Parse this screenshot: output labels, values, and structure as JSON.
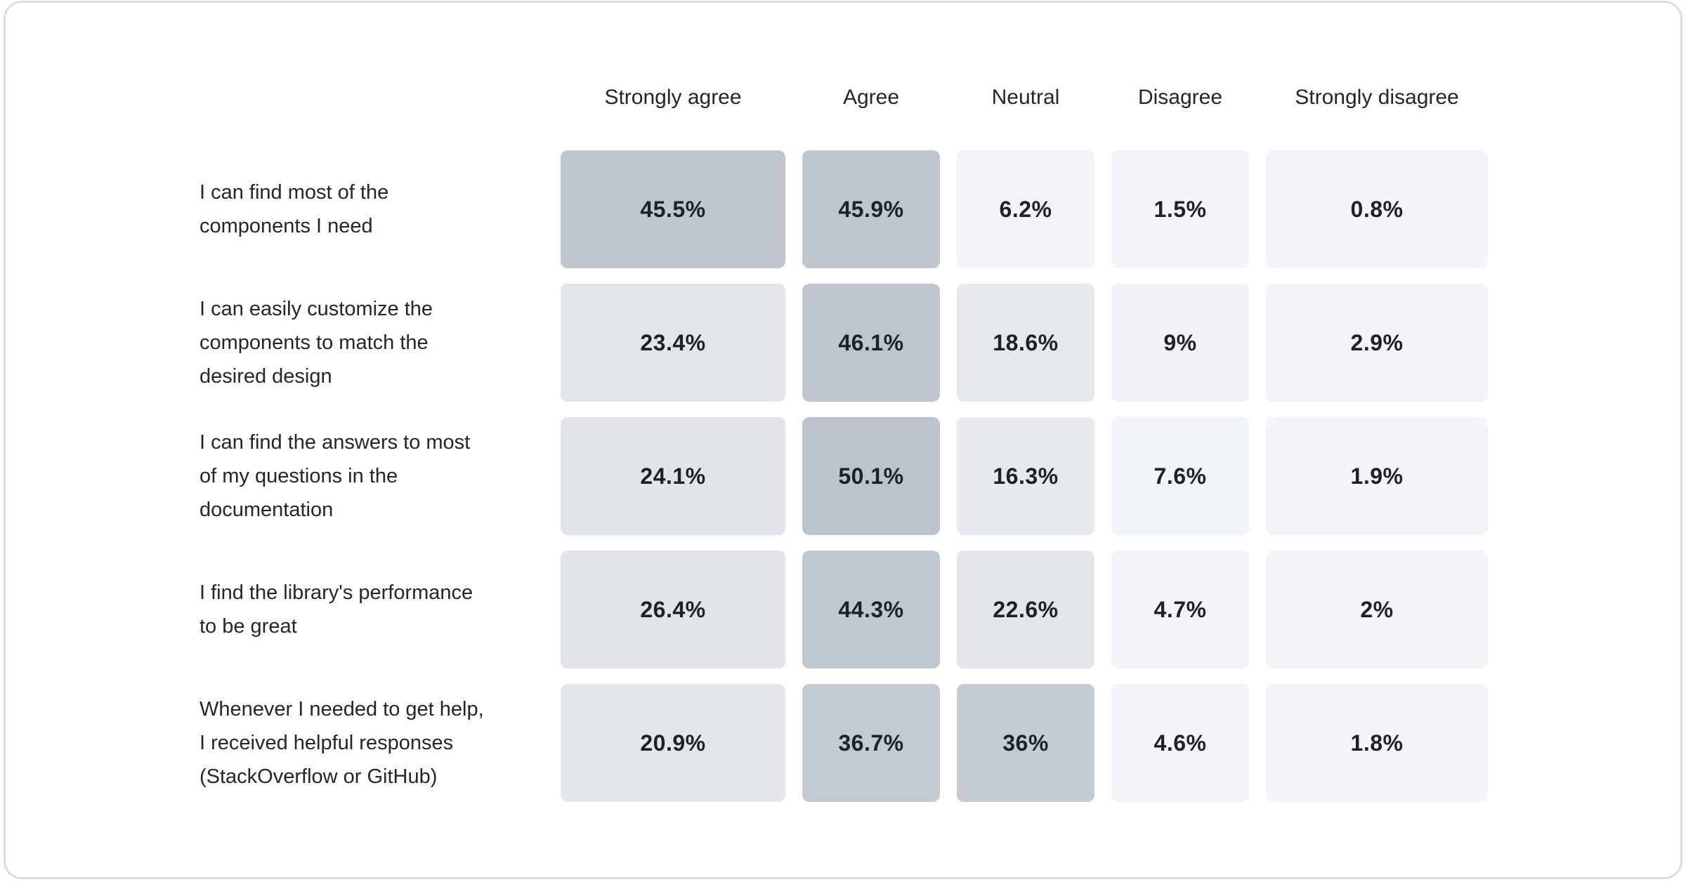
{
  "page": {
    "background": "#ffffff",
    "card_background": "#ffffff",
    "card_border_color": "#d9dde2"
  },
  "chart_data": {
    "type": "heatmap",
    "title": "",
    "columns": [
      "Strongly agree",
      "Agree",
      "Neutral",
      "Disagree",
      "Strongly disagree"
    ],
    "rows": [
      {
        "label": "I can find most of the\ncomponents I need",
        "values": [
          45.5,
          45.9,
          6.2,
          1.5,
          0.8
        ],
        "display": [
          "45.5%",
          "45.9%",
          "6.2%",
          "1.5%",
          "0.8%"
        ],
        "colors": [
          "#c0c6d0",
          "#bfc6cf",
          "#f1f3f7",
          "#f3f5f8",
          "#f3f5f8"
        ]
      },
      {
        "label": "I can easily customize the\ncomponents to match the\ndesired design",
        "values": [
          23.4,
          46.1,
          18.6,
          9,
          2.9
        ],
        "display": [
          "23.4%",
          "46.1%",
          "18.6%",
          "9%",
          "2.9%"
        ],
        "colors": [
          "#e2e6ea",
          "#bfc5cf",
          "#e5e8ed",
          "#f0f2f6",
          "#f2f4f8"
        ]
      },
      {
        "label": "I can find the answers to most\nof my questions in the\ndocumentation",
        "values": [
          24.1,
          50.1,
          16.3,
          7.6,
          1.9
        ],
        "display": [
          "24.1%",
          "50.1%",
          "16.3%",
          "7.6%",
          "1.9%"
        ],
        "colors": [
          "#e1e5ea",
          "#bcc3cd",
          "#e6e9ed",
          "#f0f3f7",
          "#f3f5f8"
        ]
      },
      {
        "label": "I find the library's performance\nto be great",
        "values": [
          26.4,
          44.3,
          22.6,
          4.7,
          2
        ],
        "display": [
          "26.4%",
          "44.3%",
          "22.6%",
          "4.7%",
          "2%"
        ],
        "colors": [
          "#e0e4e9",
          "#c0c7d0",
          "#e2e6eb",
          "#f2f4f7",
          "#f3f5f8"
        ]
      },
      {
        "label": "Whenever I needed to get help,\nI received helpful responses\n(StackOverflow or GitHub)",
        "values": [
          20.9,
          36.7,
          36,
          4.6,
          1.8
        ],
        "display": [
          "20.9%",
          "36.7%",
          "36%",
          "4.6%",
          "1.8%"
        ],
        "colors": [
          "#e3e7ec",
          "#c4cad3",
          "#c5cbd4",
          "#f2f4f8",
          "#f3f5f8"
        ]
      }
    ],
    "value_text_color": "#1d2227",
    "header_text_color": "#21272a",
    "color_scale": {
      "low": "#f3f5f9",
      "high": "#bcc3cd",
      "domain_min": 0,
      "domain_max": 50.1
    },
    "legend": "none",
    "grid": false,
    "xlabel": "",
    "ylabel": ""
  }
}
